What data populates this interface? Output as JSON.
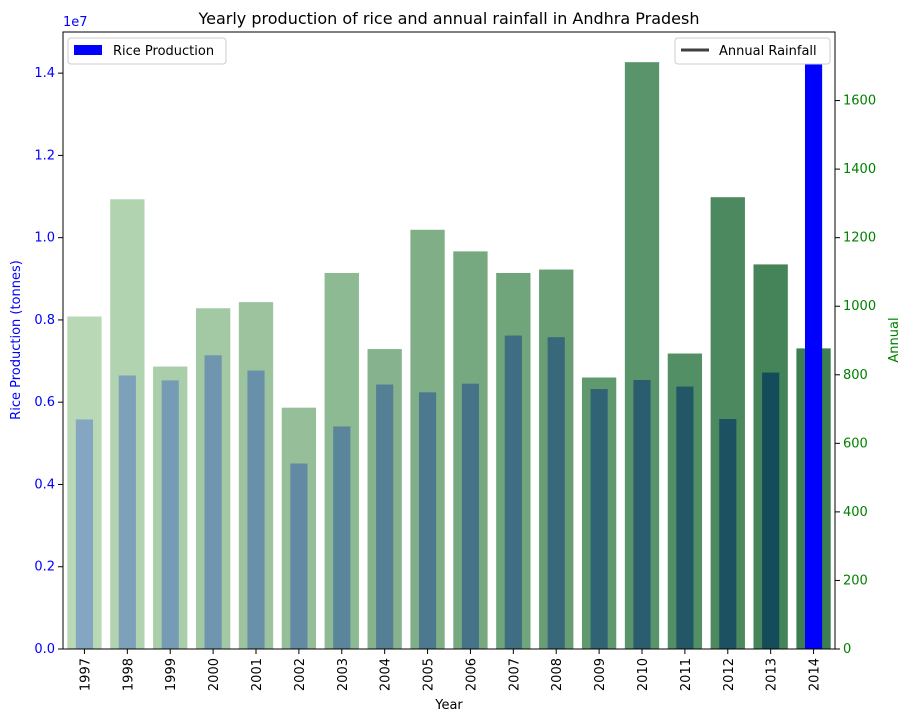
{
  "chart_data": {
    "type": "bar",
    "title": "Yearly production of rice and annual rainfall in Andhra Pradesh",
    "xlabel": "Year",
    "ylabel_left": "Rice Production (tonnes)",
    "ylabel_right": "Annual",
    "left_axis_multiplier": "1e7",
    "categories": [
      "1997",
      "1998",
      "1999",
      "2000",
      "2001",
      "2002",
      "2003",
      "2004",
      "2005",
      "2006",
      "2007",
      "2008",
      "2009",
      "2010",
      "2011",
      "2012",
      "2013",
      "2014"
    ],
    "ylim_left": [
      0,
      15000000
    ],
    "ylim_right": [
      0,
      1800
    ],
    "yticks_left": [
      0,
      2000000,
      4000000,
      6000000,
      8000000,
      10000000,
      12000000,
      14000000
    ],
    "yticks_left_labels": [
      "0.0",
      "0.2",
      "0.4",
      "0.6",
      "0.8",
      "1.0",
      "1.2",
      "1.4"
    ],
    "yticks_right": [
      0,
      200,
      400,
      600,
      800,
      1000,
      1200,
      1400,
      1600
    ],
    "series": [
      {
        "name": "Rice Production",
        "axis": "left",
        "color": "#0000ff",
        "values": [
          5580000,
          6650000,
          6530000,
          7140000,
          6770000,
          4510000,
          5410000,
          6430000,
          6240000,
          6450000,
          7620000,
          7580000,
          6320000,
          6540000,
          6380000,
          5590000,
          6720000,
          14250000
        ]
      },
      {
        "name": "Annual Rainfall",
        "axis": "right",
        "color": "#2e8b57",
        "values": [
          970,
          1312,
          824,
          994,
          1012,
          704,
          1097,
          875,
          1223,
          1160,
          1097,
          1107,
          792,
          1712,
          862,
          1318,
          1122,
          877
        ]
      }
    ],
    "legend_left": {
      "label": "Rice Production",
      "placement": "upper-left"
    },
    "legend_right": {
      "label": "Annual Rainfall",
      "placement": "upper-right"
    },
    "colors": {
      "left_axis": "#0000ff",
      "right_axis": "#008000",
      "rain_light": "#b9d8b6",
      "rain_dark": "#3d7f52",
      "rice_light": "#7b9ec4",
      "rice_dark": "#063c54",
      "rice_last": "#0000ff"
    }
  }
}
